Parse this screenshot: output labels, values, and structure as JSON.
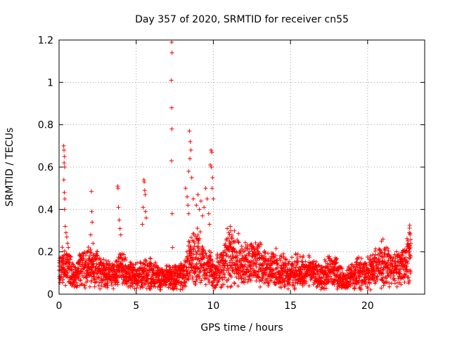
{
  "chart_data": {
    "type": "scatter",
    "title": "Day 357 of 2020, SRMTID for receiver cn55",
    "xlabel": "GPS time / hours",
    "ylabel": "SRMTID / TECUs",
    "xlim": [
      0,
      23.7
    ],
    "ylim": [
      0,
      1.2
    ],
    "xticks": [
      0,
      5,
      10,
      15,
      20
    ],
    "xtick_labels": [
      "0",
      "5",
      "10",
      "15",
      "20"
    ],
    "yticks": [
      0,
      0.2,
      0.4,
      0.6,
      0.8,
      1.0,
      1.2
    ],
    "ytick_labels": [
      "0",
      "0.2",
      "0.4",
      "0.6",
      "0.8",
      "1",
      "1.2"
    ],
    "grid": true,
    "marker": "+",
    "series": [
      {
        "name": "SRMTID",
        "color": "#ff0000",
        "baseline_profile": [
          [
            0.0,
            0.1
          ],
          [
            0.3,
            0.14
          ],
          [
            0.6,
            0.12
          ],
          [
            1.0,
            0.09
          ],
          [
            1.5,
            0.12
          ],
          [
            2.0,
            0.14
          ],
          [
            2.5,
            0.12
          ],
          [
            3.0,
            0.1
          ],
          [
            3.5,
            0.09
          ],
          [
            4.0,
            0.12
          ],
          [
            4.5,
            0.09
          ],
          [
            5.0,
            0.08
          ],
          [
            5.5,
            0.09
          ],
          [
            6.0,
            0.1
          ],
          [
            6.5,
            0.08
          ],
          [
            7.0,
            0.08
          ],
          [
            7.5,
            0.08
          ],
          [
            8.0,
            0.09
          ],
          [
            8.5,
            0.16
          ],
          [
            9.0,
            0.18
          ],
          [
            9.5,
            0.14
          ],
          [
            10.0,
            0.1
          ],
          [
            10.5,
            0.12
          ],
          [
            11.0,
            0.18
          ],
          [
            11.5,
            0.17
          ],
          [
            12.0,
            0.15
          ],
          [
            12.5,
            0.14
          ],
          [
            13.0,
            0.14
          ],
          [
            13.5,
            0.12
          ],
          [
            14.0,
            0.12
          ],
          [
            14.5,
            0.11
          ],
          [
            15.0,
            0.1
          ],
          [
            15.5,
            0.11
          ],
          [
            16.0,
            0.1
          ],
          [
            16.5,
            0.1
          ],
          [
            17.0,
            0.08
          ],
          [
            17.5,
            0.11
          ],
          [
            18.0,
            0.1
          ],
          [
            18.5,
            0.06
          ],
          [
            19.0,
            0.09
          ],
          [
            19.5,
            0.1
          ],
          [
            20.0,
            0.1
          ],
          [
            20.5,
            0.12
          ],
          [
            21.0,
            0.14
          ],
          [
            21.5,
            0.12
          ],
          [
            22.0,
            0.13
          ],
          [
            22.5,
            0.14
          ],
          [
            22.8,
            0.2
          ]
        ],
        "highlight_points": [
          [
            0.3,
            0.7
          ],
          [
            0.32,
            0.68
          ],
          [
            0.35,
            0.65
          ],
          [
            0.33,
            0.62
          ],
          [
            0.36,
            0.6
          ],
          [
            0.31,
            0.54
          ],
          [
            0.34,
            0.48
          ],
          [
            0.37,
            0.45
          ],
          [
            0.35,
            0.4
          ],
          [
            0.4,
            0.32
          ],
          [
            0.45,
            0.29
          ],
          [
            0.5,
            0.27
          ],
          [
            0.55,
            0.24
          ],
          [
            0.6,
            0.22
          ],
          [
            2.1,
            0.485
          ],
          [
            2.12,
            0.39
          ],
          [
            2.15,
            0.34
          ],
          [
            2.05,
            0.28
          ],
          [
            2.2,
            0.24
          ],
          [
            3.8,
            0.51
          ],
          [
            3.82,
            0.5
          ],
          [
            3.85,
            0.41
          ],
          [
            3.9,
            0.35
          ],
          [
            3.95,
            0.31
          ],
          [
            4.0,
            0.28
          ],
          [
            5.5,
            0.54
          ],
          [
            5.52,
            0.53
          ],
          [
            5.55,
            0.49
          ],
          [
            5.58,
            0.47
          ],
          [
            5.45,
            0.41
          ],
          [
            5.6,
            0.39
          ],
          [
            5.65,
            0.36
          ],
          [
            5.4,
            0.33
          ],
          [
            7.3,
            1.19
          ],
          [
            7.32,
            1.14
          ],
          [
            7.28,
            1.01
          ],
          [
            7.3,
            0.88
          ],
          [
            7.31,
            0.78
          ],
          [
            7.29,
            0.63
          ],
          [
            7.33,
            0.38
          ],
          [
            7.35,
            0.22
          ],
          [
            8.45,
            0.77
          ],
          [
            8.5,
            0.72
          ],
          [
            8.55,
            0.68
          ],
          [
            8.48,
            0.64
          ],
          [
            8.4,
            0.58
          ],
          [
            8.6,
            0.55
          ],
          [
            8.2,
            0.5
          ],
          [
            8.3,
            0.46
          ],
          [
            8.35,
            0.42
          ],
          [
            8.4,
            0.38
          ],
          [
            8.7,
            0.45
          ],
          [
            8.9,
            0.42
          ],
          [
            9.0,
            0.47
          ],
          [
            9.1,
            0.4
          ],
          [
            9.2,
            0.44
          ],
          [
            9.3,
            0.37
          ],
          [
            9.4,
            0.41
          ],
          [
            9.5,
            0.5
          ],
          [
            9.6,
            0.45
          ],
          [
            9.7,
            0.38
          ],
          [
            9.85,
            0.68
          ],
          [
            9.9,
            0.67
          ],
          [
            9.8,
            0.61
          ],
          [
            9.88,
            0.6
          ],
          [
            9.95,
            0.55
          ],
          [
            9.92,
            0.5
          ],
          [
            10.0,
            0.45
          ],
          [
            9.75,
            0.33
          ],
          [
            10.9,
            0.31
          ],
          [
            11.0,
            0.29
          ],
          [
            11.1,
            0.32
          ],
          [
            11.2,
            0.27
          ],
          [
            11.05,
            0.25
          ],
          [
            20.9,
            0.25
          ],
          [
            21.0,
            0.26
          ],
          [
            21.2,
            0.22
          ],
          [
            20.8,
            0.21
          ],
          [
            22.7,
            0.29
          ],
          [
            22.75,
            0.28
          ],
          [
            22.8,
            0.24
          ]
        ]
      }
    ]
  }
}
